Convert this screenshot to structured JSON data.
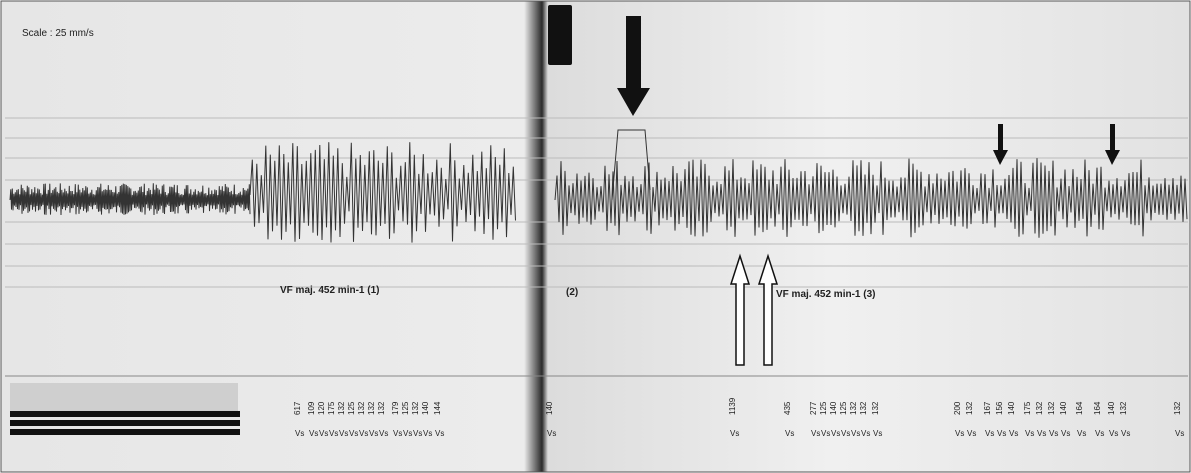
{
  "header": {
    "scale": "Scale : 25 mm/s"
  },
  "annotations": [
    "VF maj. 452 min-1 (1)",
    "(2)",
    "VF maj. 452 min-1 (3)"
  ],
  "intervals": [
    {
      "value": "617",
      "unit": "Vs"
    },
    {
      "value": "109",
      "unit": "Vs"
    },
    {
      "value": "120",
      "unit": "Vs"
    },
    {
      "value": "175",
      "unit": "Vs"
    },
    {
      "value": "132",
      "unit": "Vs"
    },
    {
      "value": "125",
      "unit": "Vs"
    },
    {
      "value": "132",
      "unit": "Vs"
    },
    {
      "value": "132",
      "unit": "Vs"
    },
    {
      "value": "132",
      "unit": "Vs"
    },
    {
      "value": "179",
      "unit": "Vs"
    },
    {
      "value": "125",
      "unit": "Vs"
    },
    {
      "value": "132",
      "unit": "Vs"
    },
    {
      "value": "140",
      "unit": "Vs"
    },
    {
      "value": "144",
      "unit": "Vs"
    },
    {
      "value": "140",
      "unit": "Vs"
    },
    {
      "value": "1139",
      "unit": "Vs"
    },
    {
      "value": "435",
      "unit": "Vs"
    },
    {
      "value": "277",
      "unit": "Vs"
    },
    {
      "value": "125",
      "unit": "Vs"
    },
    {
      "value": "140",
      "unit": "Vs"
    },
    {
      "value": "125",
      "unit": "Vs"
    },
    {
      "value": "132",
      "unit": "Vs"
    },
    {
      "value": "132",
      "unit": "Vs"
    },
    {
      "value": "132",
      "unit": "Vs"
    },
    {
      "value": "200",
      "unit": "Vs"
    },
    {
      "value": "132",
      "unit": "Vs"
    },
    {
      "value": "167",
      "unit": "Vs"
    },
    {
      "value": "156",
      "unit": "Vs"
    },
    {
      "value": "140",
      "unit": "Vs"
    },
    {
      "value": "175",
      "unit": "Vs"
    },
    {
      "value": "132",
      "unit": "Vs"
    },
    {
      "value": "132",
      "unit": "Vs"
    },
    {
      "value": "140",
      "unit": "Vs"
    },
    {
      "value": "164",
      "unit": "Vs"
    },
    {
      "value": "164",
      "unit": "Vs"
    },
    {
      "value": "140",
      "unit": "Vs"
    },
    {
      "value": "132",
      "unit": "Vs"
    },
    {
      "value": "132",
      "unit": "Vs"
    }
  ]
}
